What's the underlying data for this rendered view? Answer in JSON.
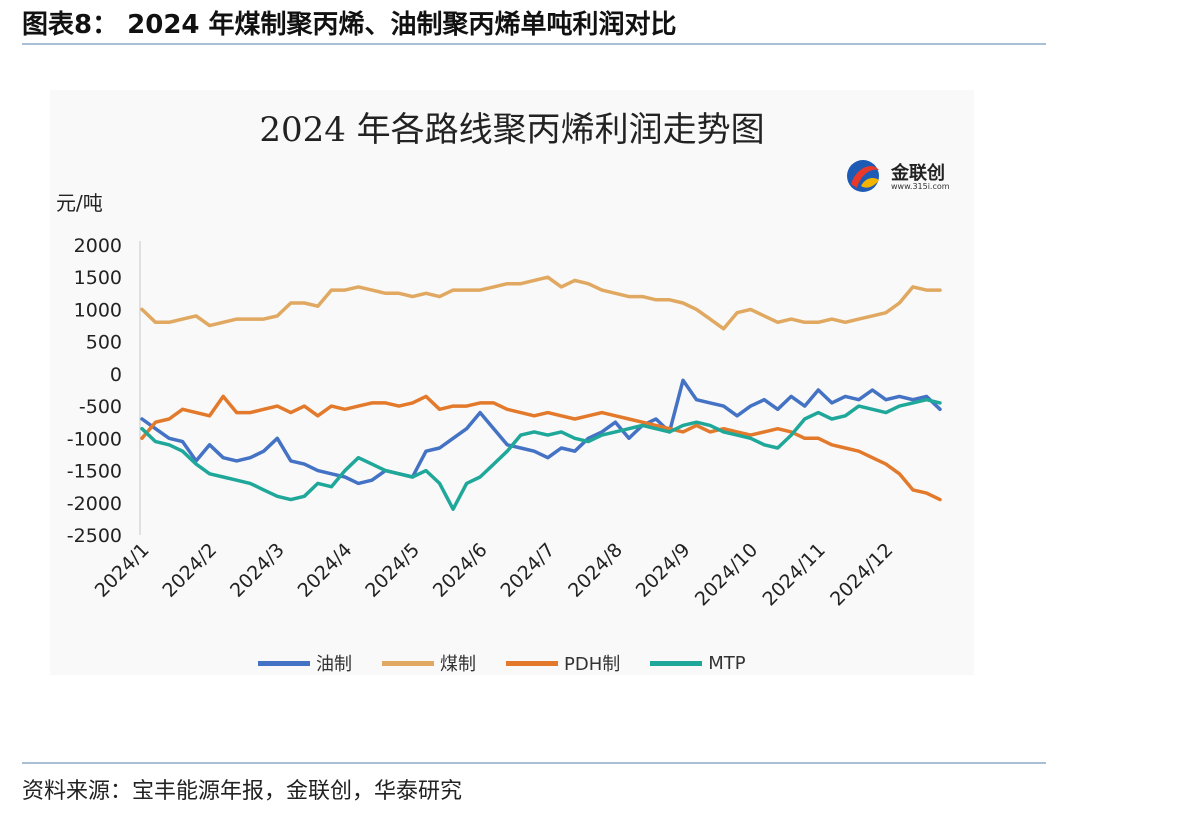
{
  "figure_title": "图表8： 2024 年煤制聚丙烯、油制聚丙烯单吨利润对比",
  "source_note": "资料来源：宝丰能源年报，金联创，华泰研究",
  "logo": {
    "name": "金联创",
    "url": "www.315i.com"
  },
  "colors": {
    "rule": "#a9bfd6",
    "oil": "#4472c4",
    "coal": "#e0a860",
    "pdh": "#e3792b",
    "mtp": "#1fa89a"
  },
  "chart_data": {
    "type": "line",
    "title": "2024 年各路线聚丙烯利润走势图",
    "ylabel": "元/吨",
    "ylim": [
      -2500,
      2000
    ],
    "yticks": [
      "2000",
      "1500",
      "1000",
      "500",
      "0",
      "-500",
      "-1000",
      "-1500",
      "-2000",
      "-2500"
    ],
    "xticks": [
      "2024/1",
      "2024/2",
      "2024/3",
      "2024/4",
      "2024/5",
      "2024/6",
      "2024/7",
      "2024/8",
      "2024/9",
      "2024/10",
      "2024/11",
      "2024/12"
    ],
    "x_note": "x values are months of 2024 on a fractional scale: 1.0 = 2024/1, 12.0 = 2024/12",
    "legend_position": "bottom",
    "grid": false,
    "series": [
      {
        "name": "油制",
        "color": "#4472c4",
        "x": [
          1.0,
          1.2,
          1.4,
          1.6,
          1.8,
          2.0,
          2.2,
          2.4,
          2.6,
          2.8,
          3.0,
          3.2,
          3.4,
          3.6,
          3.8,
          4.0,
          4.2,
          4.4,
          4.6,
          4.8,
          5.0,
          5.2,
          5.4,
          5.6,
          5.8,
          6.0,
          6.2,
          6.4,
          6.6,
          6.8,
          7.0,
          7.2,
          7.4,
          7.6,
          7.8,
          8.0,
          8.2,
          8.4,
          8.6,
          8.8,
          9.0,
          9.2,
          9.4,
          9.6,
          9.8,
          10.0,
          10.2,
          10.4,
          10.6,
          10.8,
          11.0,
          11.2,
          11.4,
          11.6,
          11.8,
          12.0,
          12.2,
          12.4,
          12.6,
          12.8
        ],
        "y": [
          -700,
          -850,
          -1000,
          -1050,
          -1350,
          -1100,
          -1300,
          -1350,
          -1300,
          -1200,
          -1000,
          -1350,
          -1400,
          -1500,
          -1550,
          -1600,
          -1700,
          -1650,
          -1500,
          -1550,
          -1600,
          -1200,
          -1150,
          -1000,
          -850,
          -600,
          -850,
          -1100,
          -1150,
          -1200,
          -1300,
          -1150,
          -1200,
          -1000,
          -900,
          -750,
          -1000,
          -800,
          -700,
          -900,
          -100,
          -400,
          -450,
          -500,
          -650,
          -500,
          -400,
          -550,
          -350,
          -500,
          -250,
          -450,
          -350,
          -400,
          -250,
          -400,
          -350,
          -400,
          -350,
          -550
        ]
      },
      {
        "name": "煤制",
        "color": "#e0a860",
        "x": [
          1.0,
          1.2,
          1.4,
          1.6,
          1.8,
          2.0,
          2.2,
          2.4,
          2.6,
          2.8,
          3.0,
          3.2,
          3.4,
          3.6,
          3.8,
          4.0,
          4.2,
          4.4,
          4.6,
          4.8,
          5.0,
          5.2,
          5.4,
          5.6,
          5.8,
          6.0,
          6.2,
          6.4,
          6.6,
          6.8,
          7.0,
          7.2,
          7.4,
          7.6,
          7.8,
          8.0,
          8.2,
          8.4,
          8.6,
          8.8,
          9.0,
          9.2,
          9.4,
          9.6,
          9.8,
          10.0,
          10.2,
          10.4,
          10.6,
          10.8,
          11.0,
          11.2,
          11.4,
          11.6,
          11.8,
          12.0,
          12.2,
          12.4,
          12.6,
          12.8
        ],
        "y": [
          1000,
          800,
          800,
          850,
          900,
          750,
          800,
          850,
          850,
          850,
          900,
          1100,
          1100,
          1050,
          1300,
          1300,
          1350,
          1300,
          1250,
          1250,
          1200,
          1250,
          1200,
          1300,
          1300,
          1300,
          1350,
          1400,
          1400,
          1450,
          1500,
          1350,
          1450,
          1400,
          1300,
          1250,
          1200,
          1200,
          1150,
          1150,
          1100,
          1000,
          850,
          700,
          950,
          1000,
          900,
          800,
          850,
          800,
          800,
          850,
          800,
          850,
          900,
          950,
          1100,
          1350,
          1300,
          1300
        ]
      },
      {
        "name": "PDH制",
        "color": "#e3792b",
        "x": [
          1.0,
          1.2,
          1.4,
          1.6,
          1.8,
          2.0,
          2.2,
          2.4,
          2.6,
          2.8,
          3.0,
          3.2,
          3.4,
          3.6,
          3.8,
          4.0,
          4.2,
          4.4,
          4.6,
          4.8,
          5.0,
          5.2,
          5.4,
          5.6,
          5.8,
          6.0,
          6.2,
          6.4,
          6.6,
          6.8,
          7.0,
          7.2,
          7.4,
          7.6,
          7.8,
          8.0,
          8.2,
          8.4,
          8.6,
          8.8,
          9.0,
          9.2,
          9.4,
          9.6,
          9.8,
          10.0,
          10.2,
          10.4,
          10.6,
          10.8,
          11.0,
          11.2,
          11.4,
          11.6,
          11.8,
          12.0,
          12.2,
          12.4,
          12.6,
          12.8
        ],
        "y": [
          -1000,
          -750,
          -700,
          -550,
          -600,
          -650,
          -350,
          -600,
          -600,
          -550,
          -500,
          -600,
          -500,
          -650,
          -500,
          -550,
          -500,
          -450,
          -450,
          -500,
          -450,
          -350,
          -550,
          -500,
          -500,
          -450,
          -450,
          -550,
          -600,
          -650,
          -600,
          -650,
          -700,
          -650,
          -600,
          -650,
          -700,
          -750,
          -800,
          -850,
          -900,
          -800,
          -900,
          -850,
          -900,
          -950,
          -900,
          -850,
          -900,
          -1000,
          -1000,
          -1100,
          -1150,
          -1200,
          -1300,
          -1400,
          -1550,
          -1800,
          -1850,
          -1950
        ]
      },
      {
        "name": "MTP",
        "color": "#1fa89a",
        "x": [
          1.0,
          1.2,
          1.4,
          1.6,
          1.8,
          2.0,
          2.2,
          2.4,
          2.6,
          2.8,
          3.0,
          3.2,
          3.4,
          3.6,
          3.8,
          4.0,
          4.2,
          4.4,
          4.6,
          4.8,
          5.0,
          5.2,
          5.4,
          5.6,
          5.8,
          6.0,
          6.2,
          6.4,
          6.6,
          6.8,
          7.0,
          7.2,
          7.4,
          7.6,
          7.8,
          8.0,
          8.2,
          8.4,
          8.6,
          8.8,
          9.0,
          9.2,
          9.4,
          9.6,
          9.8,
          10.0,
          10.2,
          10.4,
          10.6,
          10.8,
          11.0,
          11.2,
          11.4,
          11.6,
          11.8,
          12.0,
          12.2,
          12.4,
          12.6,
          12.8
        ],
        "y": [
          -850,
          -1050,
          -1100,
          -1200,
          -1400,
          -1550,
          -1600,
          -1650,
          -1700,
          -1800,
          -1900,
          -1950,
          -1900,
          -1700,
          -1750,
          -1500,
          -1300,
          -1400,
          -1500,
          -1550,
          -1600,
          -1500,
          -1700,
          -2100,
          -1700,
          -1600,
          -1400,
          -1200,
          -950,
          -900,
          -950,
          -900,
          -1000,
          -1050,
          -950,
          -900,
          -850,
          -800,
          -850,
          -900,
          -800,
          -750,
          -800,
          -900,
          -950,
          -1000,
          -1100,
          -1150,
          -950,
          -700,
          -600,
          -700,
          -650,
          -500,
          -550,
          -600,
          -500,
          -450,
          -400,
          -450
        ]
      }
    ]
  }
}
